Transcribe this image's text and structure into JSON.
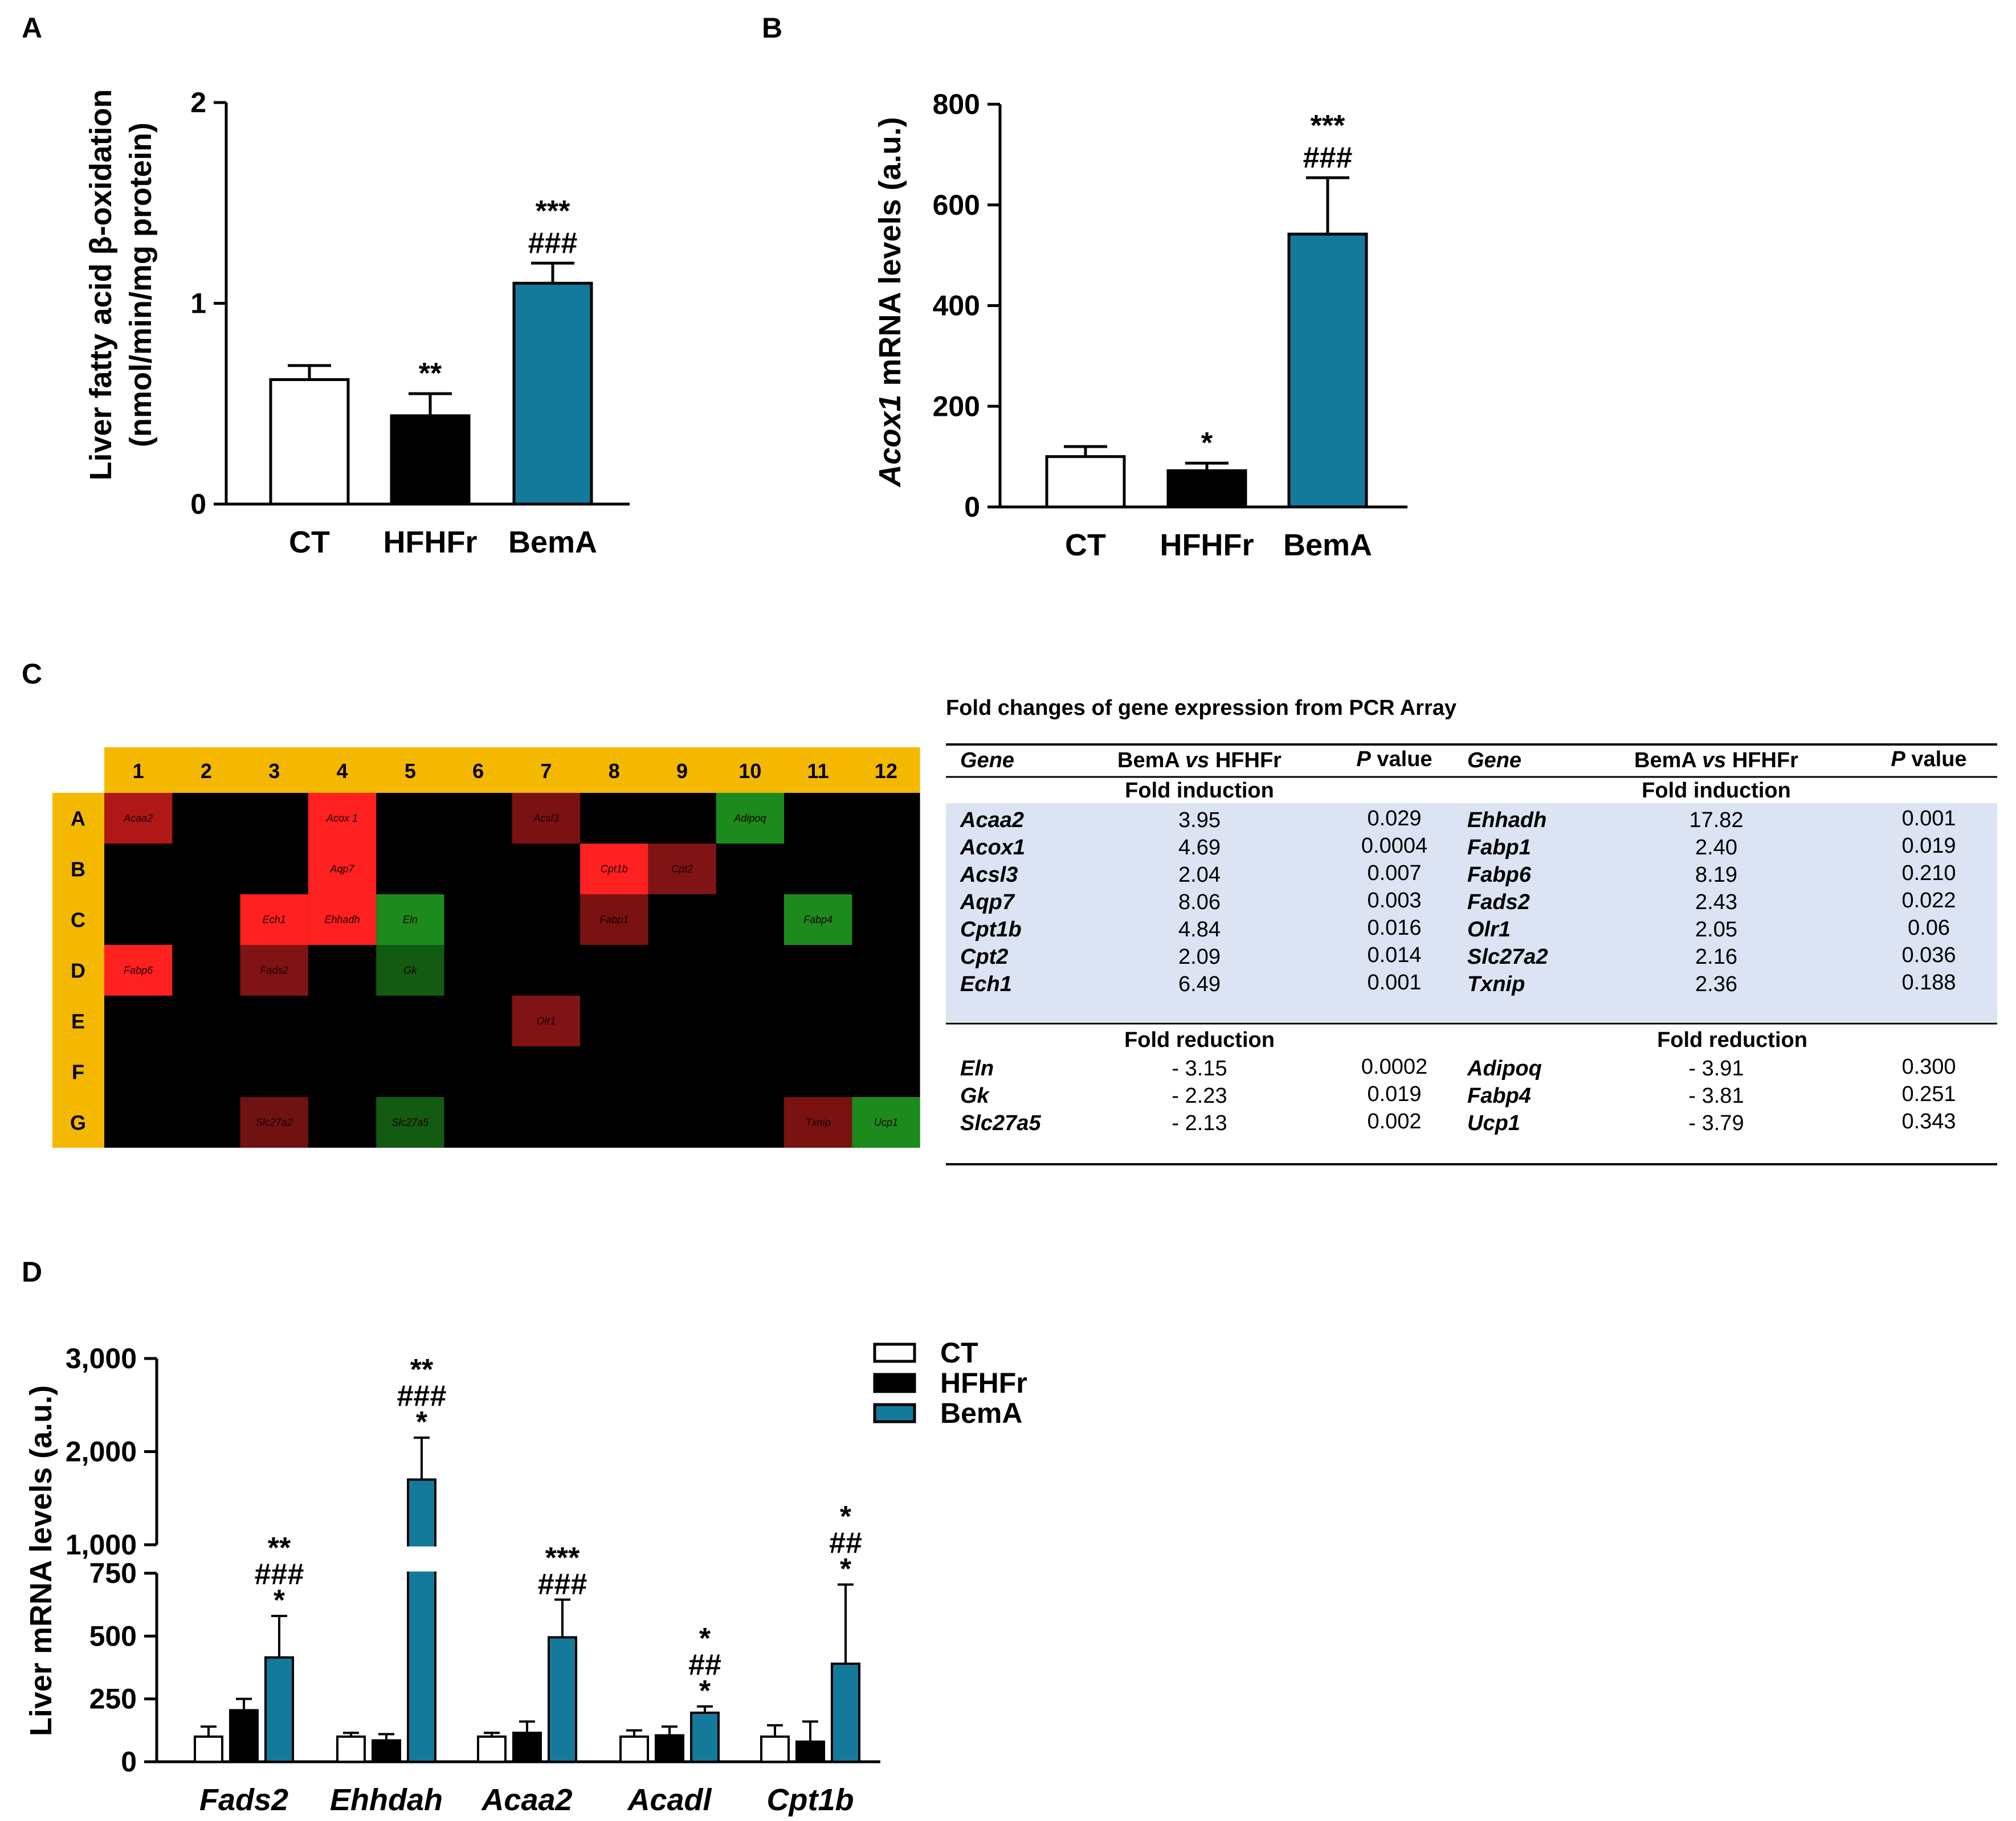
{
  "panel_labels": {
    "a": "A",
    "b": "B",
    "c": "C",
    "d": "D"
  },
  "colors": {
    "ct": "#ffffff",
    "hfhfr": "#000000",
    "bema": "#137a9c",
    "heat_header": "#f5b800",
    "heat_bg": "#000000",
    "table_band": "#dce3f2"
  },
  "chart_data": [
    {
      "id": "A",
      "type": "bar",
      "ylabel": [
        "Liver fatty acid β-oxidation",
        "(nmol/min/mg protein)"
      ],
      "categories": [
        "CT",
        "HFHFr",
        "BemA"
      ],
      "values": [
        0.62,
        0.44,
        1.1
      ],
      "errors": [
        0.07,
        0.11,
        0.1
      ],
      "sig": [
        [],
        [
          "**"
        ],
        [
          "***",
          "###"
        ]
      ],
      "ylim": [
        0,
        2
      ],
      "yticks": [
        "0",
        "1",
        "2"
      ]
    },
    {
      "id": "B",
      "type": "bar",
      "ylabel_italic": "Acox1",
      "ylabel_rest": " mRNA levels (a.u.)",
      "categories": [
        "CT",
        "HFHFr",
        "BemA"
      ],
      "values": [
        100,
        72,
        542
      ],
      "errors": [
        20,
        15,
        112
      ],
      "sig": [
        [],
        [
          "*"
        ],
        [
          "***",
          "###"
        ]
      ],
      "ylim": [
        0,
        800
      ],
      "yticks": [
        "0",
        "200",
        "400",
        "600",
        "800"
      ]
    },
    {
      "id": "C",
      "type": "heatmap",
      "cols": [
        "1",
        "2",
        "3",
        "4",
        "5",
        "6",
        "7",
        "8",
        "9",
        "10",
        "11",
        "12"
      ],
      "rows": [
        "A",
        "B",
        "C",
        "D",
        "E",
        "F",
        "G"
      ],
      "cells": [
        {
          "row": 0,
          "col": 0,
          "label": "Acaa2",
          "color": "#b01818"
        },
        {
          "row": 0,
          "col": 3,
          "label": "Acox 1",
          "color": "#ff2020"
        },
        {
          "row": 0,
          "col": 6,
          "label": "Acsl3",
          "color": "#7a1212"
        },
        {
          "row": 0,
          "col": 9,
          "label": "Adipoq",
          "color": "#1c8a1c"
        },
        {
          "row": 1,
          "col": 3,
          "label": "Aqp7",
          "color": "#ff2020"
        },
        {
          "row": 1,
          "col": 7,
          "label": "Cpt1b",
          "color": "#ff2020"
        },
        {
          "row": 1,
          "col": 8,
          "label": "Cpt2",
          "color": "#801414"
        },
        {
          "row": 2,
          "col": 2,
          "label": "Ech1",
          "color": "#ff2020"
        },
        {
          "row": 2,
          "col": 3,
          "label": "Ehhadh",
          "color": "#ff2020"
        },
        {
          "row": 2,
          "col": 4,
          "label": "Eln",
          "color": "#1c8a1c"
        },
        {
          "row": 2,
          "col": 7,
          "label": "Fabp1",
          "color": "#7a1212"
        },
        {
          "row": 2,
          "col": 10,
          "label": "Fabp4",
          "color": "#1c8a1c"
        },
        {
          "row": 3,
          "col": 0,
          "label": "Fabp6",
          "color": "#ff2020"
        },
        {
          "row": 3,
          "col": 2,
          "label": "Fads2",
          "color": "#801414"
        },
        {
          "row": 3,
          "col": 4,
          "label": "Gk",
          "color": "#135a13"
        },
        {
          "row": 4,
          "col": 6,
          "label": "Olr1",
          "color": "#801414"
        },
        {
          "row": 6,
          "col": 2,
          "label": "Slc27a2",
          "color": "#701212"
        },
        {
          "row": 6,
          "col": 4,
          "label": "Slc27a5",
          "color": "#135a13"
        },
        {
          "row": 6,
          "col": 10,
          "label": "Txnip",
          "color": "#7a1212"
        },
        {
          "row": 6,
          "col": 11,
          "label": "Ucp1",
          "color": "#1c8a1c"
        }
      ]
    },
    {
      "id": "C-table",
      "type": "table",
      "title": "Fold changes of gene expression from PCR Array",
      "headers": [
        {
          "gene": "Gene",
          "cmp_a": "BemA ",
          "cmp_vs": "vs",
          "cmp_b": " HFHFr",
          "p_it": "P",
          "p_rest": " value"
        },
        {
          "gene": "Gene",
          "cmp_a": "BemA ",
          "cmp_vs": "vs",
          "cmp_b": " HFHFr",
          "p_it": "P",
          "p_rest": " value"
        }
      ],
      "induction_label": "Fold induction",
      "reduction_label": "Fold reduction",
      "induction_left": [
        [
          "Acaa2",
          "3.95",
          "0.029"
        ],
        [
          "Acox1",
          "4.69",
          "0.0004"
        ],
        [
          "Acsl3",
          "2.04",
          "0.007"
        ],
        [
          "Aqp7",
          "8.06",
          "0.003"
        ],
        [
          "Cpt1b",
          "4.84",
          "0.016"
        ],
        [
          "Cpt2",
          "2.09",
          "0.014"
        ],
        [
          "Ech1",
          "6.49",
          "0.001"
        ]
      ],
      "induction_right": [
        [
          "Ehhadh",
          "17.82",
          "0.001"
        ],
        [
          "Fabp1",
          "2.40",
          "0.019"
        ],
        [
          "Fabp6",
          "8.19",
          "0.210"
        ],
        [
          "Fads2",
          "2.43",
          "0.022"
        ],
        [
          "Olr1",
          "2.05",
          "0.06"
        ],
        [
          "Slc27a2",
          "2.16",
          "0.036"
        ],
        [
          "Txnip",
          "2.36",
          "0.188"
        ]
      ],
      "reduction_left": [
        [
          "Eln",
          "- 3.15",
          "0.0002"
        ],
        [
          "Gk",
          "- 2.23",
          "0.019"
        ],
        [
          "Slc27a5",
          "- 2.13",
          "0.002"
        ]
      ],
      "reduction_right": [
        [
          "Adipoq",
          "- 3.91",
          "0.300"
        ],
        [
          "Fabp4",
          "- 3.81",
          "0.251"
        ],
        [
          "Ucp1",
          "- 3.79",
          "0.343"
        ]
      ]
    },
    {
      "id": "D",
      "type": "bar",
      "ylabel": "Liver mRNA levels (a.u.)",
      "categories": [
        "Fads2",
        "Ehhdah",
        "Acaa2",
        "Acadl",
        "Cpt1b"
      ],
      "series": [
        {
          "name": "CT",
          "values": [
            100,
            100,
            100,
            100,
            100
          ],
          "errors": [
            40,
            15,
            15,
            25,
            45
          ]
        },
        {
          "name": "HFHFr",
          "values": [
            205,
            85,
            115,
            105,
            80
          ],
          "errors": [
            45,
            25,
            45,
            35,
            80
          ]
        },
        {
          "name": "BemA",
          "values": [
            415,
            1700,
            495,
            195,
            390
          ],
          "errors": [
            165,
            450,
            150,
            25,
            315
          ]
        }
      ],
      "sig": [
        [
          "**",
          "###",
          "*"
        ],
        [
          "**",
          "###",
          "*"
        ],
        [
          "***",
          "###"
        ],
        [
          "*",
          "##",
          "*"
        ],
        [
          "*",
          "##",
          "*"
        ]
      ],
      "ylim": [
        0,
        3000
      ],
      "axis_break": [
        750,
        1000
      ],
      "yticks_low": [
        "0",
        "250",
        "500",
        "750"
      ],
      "yticks_high": [
        "1,000",
        "2,000",
        "3,000"
      ],
      "legend": [
        "CT",
        "HFHFr",
        "BemA"
      ]
    }
  ]
}
